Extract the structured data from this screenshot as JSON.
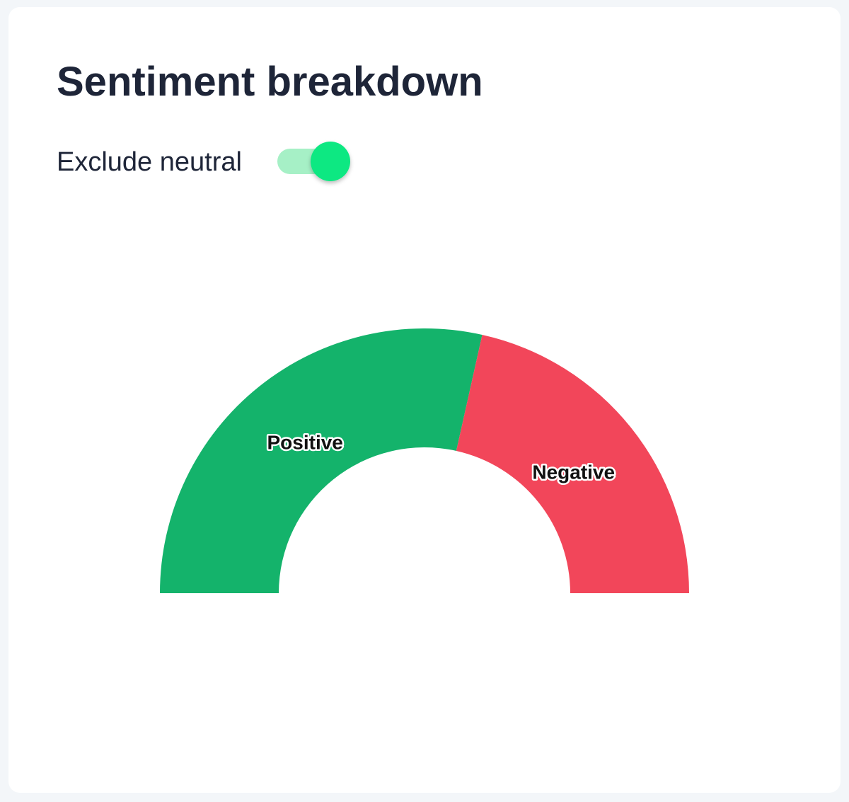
{
  "header": {
    "title": "Sentiment breakdown"
  },
  "toggle": {
    "label": "Exclude neutral",
    "on": true
  },
  "chart_data": {
    "type": "pie",
    "half": true,
    "categories": [
      "Positive",
      "Negative"
    ],
    "values": [
      57,
      43
    ],
    "colors": [
      "#14b36b",
      "#f2465a"
    ]
  }
}
